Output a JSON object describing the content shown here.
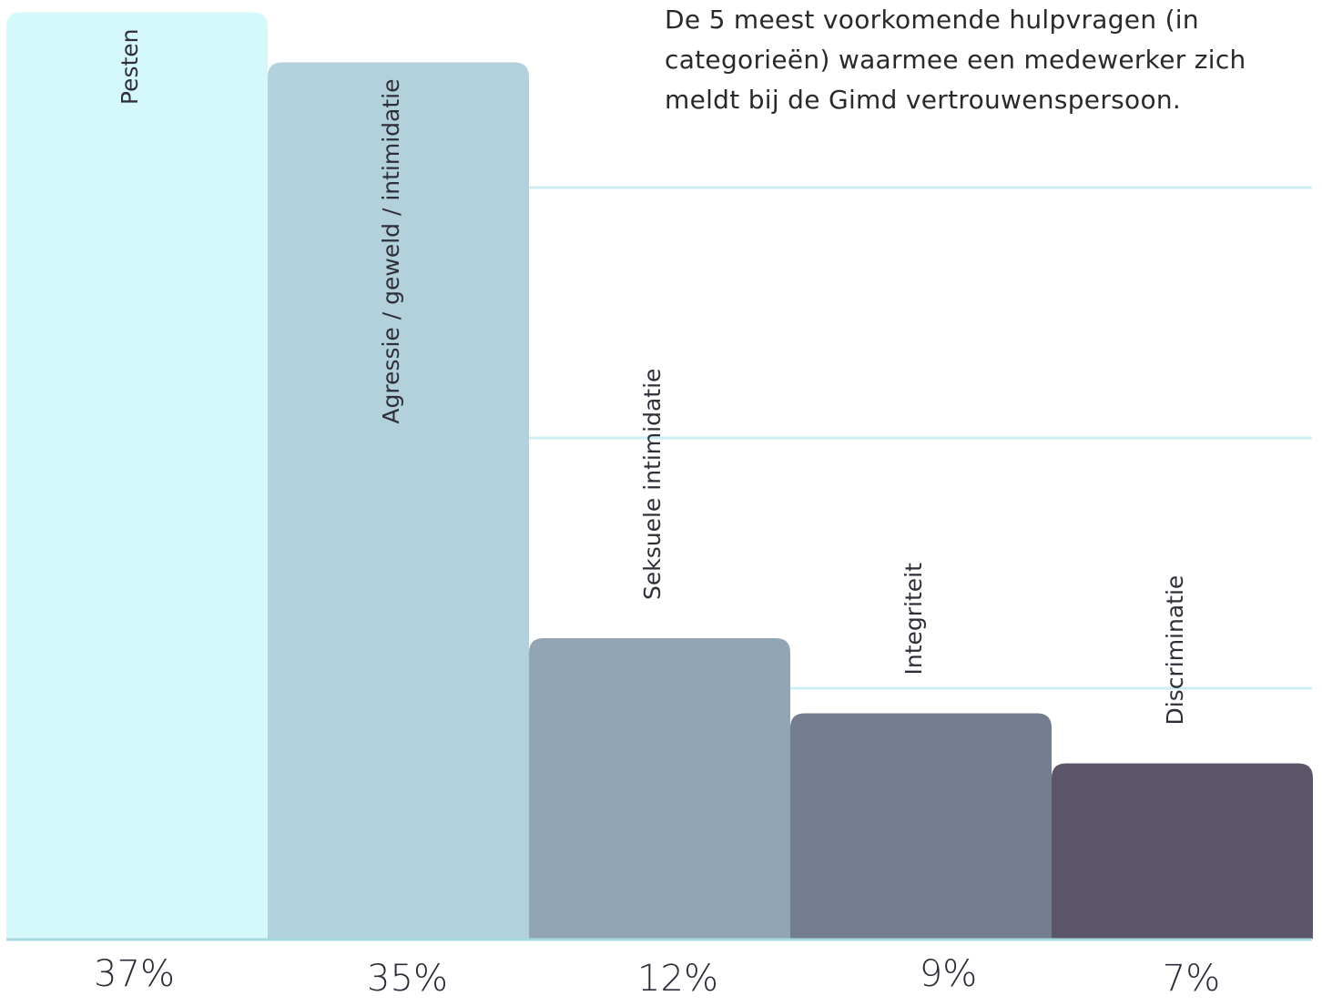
{
  "title": "De 5 meest voorkomende hulpvragen (in categorieën) waarmee een medewerker zich meldt bij de Gimd vertrouwenspersoon.",
  "colors": {
    "bars": [
      "#d5f9fb",
      "#b3d1dc",
      "#92a5b4",
      "#747c90",
      "#5a5569"
    ],
    "gridline": "#cdeef3",
    "baseline": "#a7d9e3",
    "text": "#2f2f3a"
  },
  "chart_data": {
    "type": "bar",
    "title": "De 5 meest voorkomende hulpvragen (in categorieën) waarmee een medewerker zich meldt bij de Gimd vertrouwenspersoon.",
    "categories": [
      "Pesten",
      "Agressie / geweld / intimidatie",
      "Seksuele intimidatie",
      "Integriteit",
      "Discriminatie"
    ],
    "values": [
      37,
      35,
      12,
      9,
      7
    ],
    "value_labels": [
      "37%",
      "35%",
      "12%",
      "9%",
      "7%"
    ],
    "unit": "%",
    "xlabel": "",
    "ylabel": "",
    "ylim": [
      0,
      37.5
    ],
    "grid": true
  }
}
